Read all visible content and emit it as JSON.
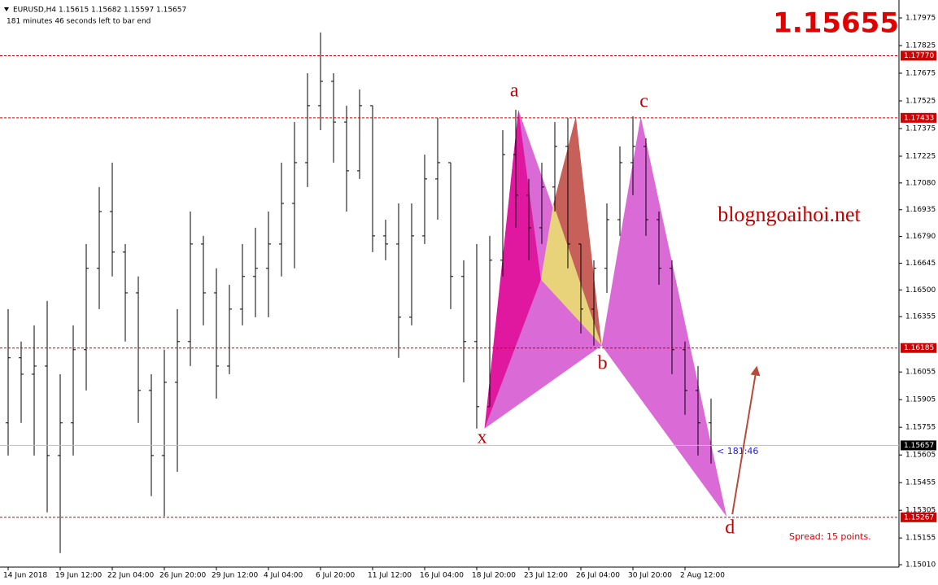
{
  "chart_data": {
    "type": "ohlc",
    "symbol": "EURUSD,H4",
    "header_values": [
      1.15615,
      1.15682,
      1.15597,
      1.15657
    ],
    "timer": "181 minutes 46 seconds left to bar end",
    "big_price": 1.15655,
    "countdown": "< 181:46",
    "spread": "Spread: 15 points.",
    "watermark": "blogngoaihoi.net",
    "ylim": [
      1.14997,
      1.18072
    ],
    "yticks": [
      1.17975,
      1.17825,
      1.17675,
      1.17525,
      1.17375,
      1.17225,
      {
        "value": 1.1708,
        "label": "1.17080"
      },
      1.16935,
      {
        "value": 1.1679,
        "label": "1.16790"
      },
      1.16645,
      {
        "value": 1.165,
        "label": "1.16500"
      },
      1.16355,
      1.16055,
      1.15905,
      1.15755,
      1.15605,
      1.15455,
      1.15305,
      1.15155,
      {
        "value": 1.1501,
        "label": "1.15010"
      }
    ],
    "levels": [
      {
        "value": 1.1777,
        "label": "1.17770"
      },
      1.17433,
      1.16185,
      1.15267
    ],
    "current": 1.15657,
    "x_labels": [
      "14 Jun 2018",
      "19 Jun 12:00",
      "22 Jun 04:00",
      "26 Jun 20:00",
      "29 Jun 12:00",
      "4 Jul 04:00",
      "6 Jul 20:00",
      "11 Jul 12:00",
      "16 Jul 04:00",
      "18 Jul 20:00",
      "23 Jul 12:00",
      "26 Jul 04:00",
      "30 Jul 20:00",
      "2 Aug 12:00"
    ],
    "ohlc": [
      [
        1.15779,
        1.16396,
        1.15602,
        1.16132
      ],
      [
        1.16132,
        1.1622,
        1.15779,
        1.16043
      ],
      [
        1.16043,
        1.16308,
        1.15602,
        1.16087
      ],
      [
        1.16087,
        1.1644,
        1.15294,
        1.15602
      ],
      [
        1.15602,
        1.16043,
        1.15073,
        1.15779
      ],
      [
        1.15779,
        1.16308,
        1.15602,
        1.16176
      ],
      [
        1.16176,
        1.16749,
        1.15955,
        1.16617
      ],
      [
        1.16617,
        1.17058,
        1.16396,
        1.16925
      ],
      [
        1.16925,
        1.1719,
        1.16573,
        1.16705
      ],
      [
        1.16705,
        1.16749,
        1.1622,
        1.16484
      ],
      [
        1.16484,
        1.16573,
        1.15779,
        1.15955
      ],
      [
        1.15955,
        1.16043,
        1.15382,
        1.15602
      ],
      [
        1.15602,
        1.16176,
        1.15272,
        1.15999
      ],
      [
        1.15999,
        1.16396,
        1.15514,
        1.1622
      ],
      [
        1.1622,
        1.16925,
        1.16087,
        1.16749
      ],
      [
        1.16749,
        1.16793,
        1.16308,
        1.16484
      ],
      [
        1.16484,
        1.16617,
        1.15911,
        1.16087
      ],
      [
        1.16087,
        1.16528,
        1.16043,
        1.16396
      ],
      [
        1.16396,
        1.16749,
        1.16308,
        1.16573
      ],
      [
        1.16573,
        1.16837,
        1.16352,
        1.16617
      ],
      [
        1.16617,
        1.16925,
        1.16352,
        1.16749
      ],
      [
        1.16749,
        1.1719,
        1.16573,
        1.16969
      ],
      [
        1.16969,
        1.1741,
        1.16617,
        1.1719
      ],
      [
        1.1719,
        1.17675,
        1.17058,
        1.17499
      ],
      [
        1.17499,
        1.17896,
        1.17366,
        1.17631
      ],
      [
        1.17631,
        1.17675,
        1.1719,
        1.1741
      ],
      [
        1.1741,
        1.17499,
        1.16925,
        1.17146
      ],
      [
        1.17146,
        1.17587,
        1.17102,
        1.17499
      ],
      [
        1.17499,
        1.17499,
        1.16705,
        1.16793
      ],
      [
        1.16793,
        1.16881,
        1.16661,
        1.16749
      ],
      [
        1.16749,
        1.16969,
        1.16132,
        1.16352
      ],
      [
        1.16352,
        1.16969,
        1.16308,
        1.16793
      ],
      [
        1.16793,
        1.17234,
        1.16749,
        1.17102
      ],
      [
        1.17102,
        1.17433,
        1.16881,
        1.1719
      ],
      [
        1.1719,
        1.1719,
        1.16396,
        1.16573
      ],
      [
        1.16573,
        1.16661,
        1.15999,
        1.1622
      ],
      [
        1.1622,
        1.16749,
        1.15748,
        1.15867
      ],
      [
        1.15867,
        1.16793,
        1.15867,
        1.16661
      ],
      [
        1.16661,
        1.17366,
        1.16573,
        1.17234
      ],
      [
        1.17234,
        1.17477,
        1.16837,
        1.17014
      ],
      [
        1.17014,
        1.17102,
        1.16661,
        1.16837
      ],
      [
        1.16837,
        1.1719,
        1.16749,
        1.17058
      ],
      [
        1.17058,
        1.1741,
        1.16925,
        1.17278
      ],
      [
        1.17278,
        1.17433,
        1.16617,
        1.16749
      ],
      [
        1.16749,
        1.16749,
        1.16264,
        1.16396
      ],
      [
        1.16396,
        1.16661,
        1.16198,
        1.16617
      ],
      [
        1.16617,
        1.16969,
        1.16484,
        1.16881
      ],
      [
        1.16881,
        1.17278,
        1.16793,
        1.1719
      ],
      [
        1.1719,
        1.17441,
        1.17014,
        1.17278
      ],
      [
        1.17278,
        1.17322,
        1.16793,
        1.16881
      ],
      [
        1.16881,
        1.16925,
        1.16528,
        1.16617
      ],
      [
        1.16617,
        1.16661,
        1.16043,
        1.16176
      ],
      [
        1.16176,
        1.1622,
        1.15823,
        1.15955
      ],
      [
        1.15955,
        1.16087,
        1.15602,
        1.15779
      ],
      [
        1.15779,
        1.15911,
        1.15558,
        1.15657
      ]
    ],
    "pattern": [
      {
        "label": "x",
        "bar": 36.6,
        "price": 1.15748
      },
      {
        "label": "a",
        "bar": 39.2,
        "price": 1.17477
      },
      {
        "label": "b",
        "bar": 45.6,
        "price": 1.16198
      },
      {
        "label": "c",
        "bar": 48.6,
        "price": 1.17441
      },
      {
        "label": "d",
        "bar": 55.2,
        "price": 1.1527
      }
    ],
    "arrow_target": {
      "bar": 57.5,
      "price": 1.16078
    }
  }
}
